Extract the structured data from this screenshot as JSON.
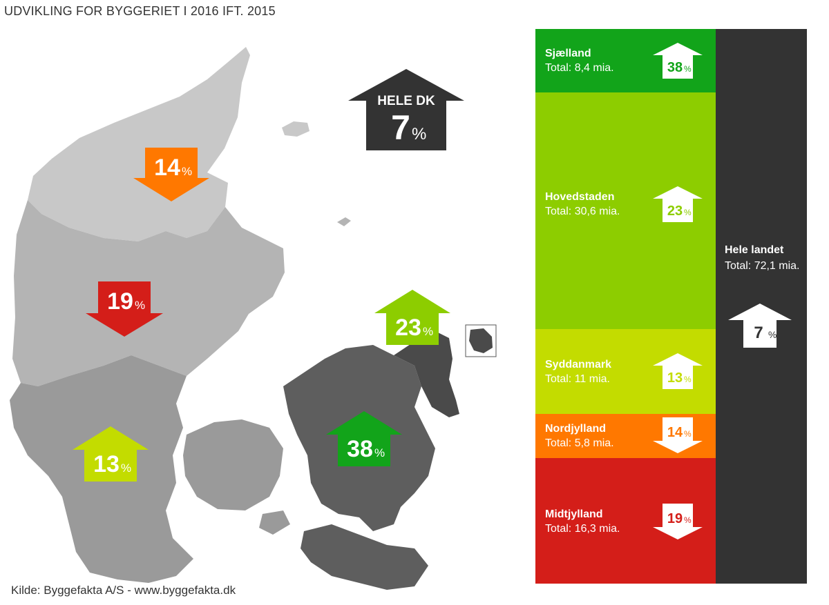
{
  "title": "UDVIKLING FOR BYGGERIET I 2016 IFT. 2015",
  "source": "Kilde: Byggefakta A/S - www.byggefakta.dk",
  "colors": {
    "dark_green": "#12a41a",
    "light_green": "#8dcd00",
    "yellow_green": "#c3dc00",
    "orange": "#ff7800",
    "red": "#d41e19",
    "dark": "#333333"
  },
  "map": {
    "national": {
      "label": "HELE DK",
      "value": "7",
      "unit": "%",
      "direction": "up"
    },
    "regions": [
      {
        "id": "nordjylland",
        "value": "14",
        "unit": "%",
        "direction": "down",
        "color": "#ff7800"
      },
      {
        "id": "midtjylland",
        "value": "19",
        "unit": "%",
        "direction": "down",
        "color": "#d41e19"
      },
      {
        "id": "syddanmark",
        "value": "13",
        "unit": "%",
        "direction": "up",
        "color": "#c3dc00"
      },
      {
        "id": "sjaelland",
        "value": "38",
        "unit": "%",
        "direction": "up",
        "color": "#12a41a"
      },
      {
        "id": "hovedstaden",
        "value": "23",
        "unit": "%",
        "direction": "up",
        "color": "#8dcd00"
      }
    ]
  },
  "panel": {
    "segments": [
      {
        "name": "Sjælland",
        "total": "Total: 8,4 mia.",
        "value": "38",
        "unit": "%",
        "direction": "up",
        "color": "#12a41a"
      },
      {
        "name": "Hovedstaden",
        "total": "Total: 30,6 mia.",
        "value": "23",
        "unit": "%",
        "direction": "up",
        "color": "#8dcd00"
      },
      {
        "name": "Syddanmark",
        "total": "Total: 11 mia.",
        "value": "13",
        "unit": "%",
        "direction": "up",
        "color": "#c3dc00"
      },
      {
        "name": "Nordjylland",
        "total": "Total: 5,8 mia.",
        "value": "14",
        "unit": "%",
        "direction": "down",
        "color": "#ff7800"
      },
      {
        "name": "Midtjylland",
        "total": "Total: 16,3 mia.",
        "value": "19",
        "unit": "%",
        "direction": "down",
        "color": "#d41e19"
      }
    ],
    "total": {
      "name": "Hele landet",
      "total": "Total: 72,1 mia.",
      "value": "7",
      "unit": "%",
      "direction": "up"
    }
  }
}
